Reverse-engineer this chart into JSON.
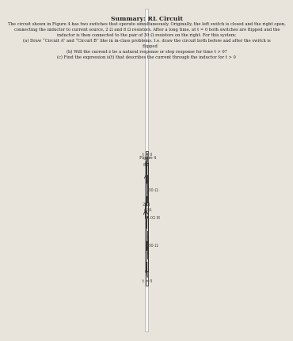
{
  "bg_color": "#e8e4dc",
  "paper_color": "#f5f4f0",
  "border_color": "#888888",
  "circuit_border": "#555555",
  "title": "Summary: RL Circuit",
  "title_fontsize": 5.5,
  "body_text": [
    "The circuit shown in Figure 4 has two switches that operate simultaneously. Originally, the left switch is closed and the right open,",
    "connecting the inductor to current source, 2 Ω and 8 Ω resistors. After a long time, at t = 0 both switches are flipped and the",
    "inductor is then connected to the pair of 30 Ω resistors on the right. For this system:",
    "(a) Draw “Circuit A” and “Circuit B” like in in-class problems. I.e. draw the circuit both before and after the switch is",
    "     flipped",
    "(b) Will the current iₗ be a natural response or step response for time t > 0?",
    "(c) Find the expression iₗ(t) that describes the current through the inductor for t > 0"
  ],
  "body_fontsize": 3.8,
  "figure_label": "Figure 4",
  "circuit": {
    "current_source_label": "3A",
    "r1_label": "2 Ω",
    "r2_label": "8Ω",
    "inductor_label": "0.02 H",
    "il_label": "iₗ",
    "r3_label": "30 Ω",
    "r4_label": "30 Ω",
    "switch1_label": "t = 0",
    "switch2_label": "t = 0"
  }
}
